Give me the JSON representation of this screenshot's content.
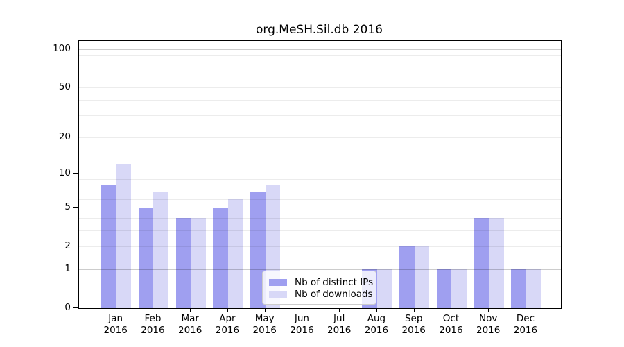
{
  "chart_data": {
    "type": "bar",
    "title": "org.MeSH.Sil.db 2016",
    "categories": [
      "Jan",
      "Feb",
      "Mar",
      "Apr",
      "May",
      "Jun",
      "Jul",
      "Aug",
      "Sep",
      "Oct",
      "Nov",
      "Dec"
    ],
    "x_sublabel": "2016",
    "series": [
      {
        "name": "Nb of distinct IPs",
        "color": "#9f9ff0",
        "values": [
          8,
          5,
          4,
          5,
          7,
          0,
          0,
          1,
          2,
          1,
          4,
          1
        ]
      },
      {
        "name": "Nb of downloads",
        "color": "#d8d8f7",
        "values": [
          12,
          7,
          4,
          6,
          8,
          0,
          0,
          1,
          2,
          1,
          4,
          1
        ]
      }
    ],
    "y_scale": "log1p",
    "ylim": [
      0,
      116
    ],
    "y_ticks": [
      0,
      1,
      2,
      5,
      10,
      20,
      50,
      100
    ],
    "y_grid_major": [
      1,
      10,
      100
    ],
    "y_grid_minor": [
      2,
      3,
      4,
      5,
      6,
      7,
      8,
      9,
      20,
      30,
      40,
      50,
      60,
      70,
      80,
      90
    ],
    "grid": true,
    "legend_position": "lower center",
    "xlabel": "",
    "ylabel": ""
  }
}
